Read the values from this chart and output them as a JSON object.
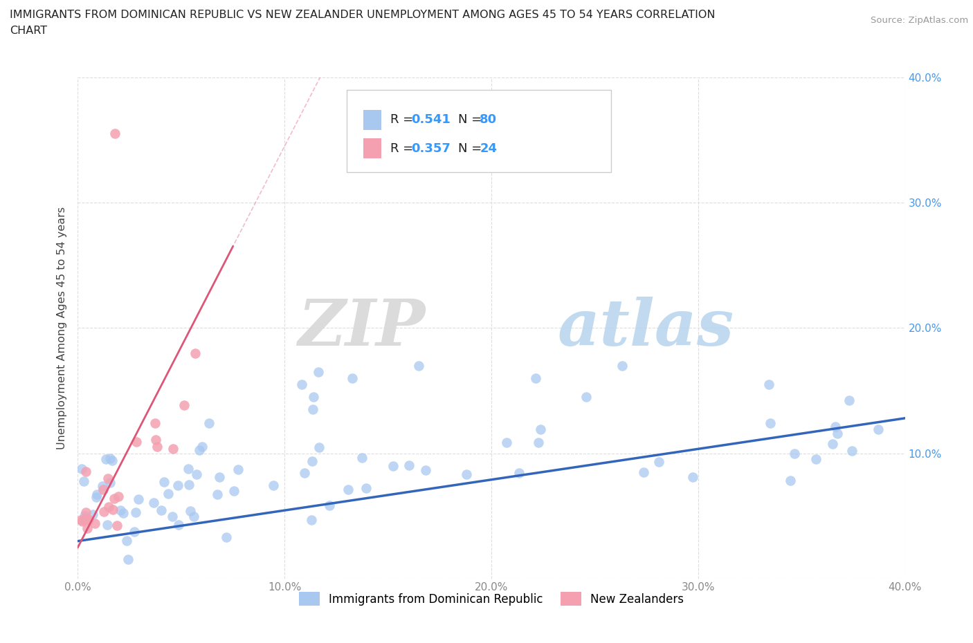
{
  "title_line1": "IMMIGRANTS FROM DOMINICAN REPUBLIC VS NEW ZEALANDER UNEMPLOYMENT AMONG AGES 45 TO 54 YEARS CORRELATION",
  "title_line2": "CHART",
  "source_text": "Source: ZipAtlas.com",
  "ylabel": "Unemployment Among Ages 45 to 54 years",
  "xlim": [
    0.0,
    0.4
  ],
  "ylim": [
    0.0,
    0.4
  ],
  "xticks": [
    0.0,
    0.1,
    0.2,
    0.3,
    0.4
  ],
  "yticks": [
    0.0,
    0.1,
    0.2,
    0.3,
    0.4
  ],
  "xticklabels": [
    "0.0%",
    "10.0%",
    "20.0%",
    "30.0%",
    "40.0%"
  ],
  "yticklabels_right": [
    "",
    "10.0%",
    "20.0%",
    "30.0%",
    "40.0%"
  ],
  "blue_R": "0.541",
  "blue_N": "80",
  "pink_R": "0.357",
  "pink_N": "24",
  "blue_color": "#a8c8f0",
  "pink_color": "#f4a0b0",
  "blue_line_color": "#3366bb",
  "pink_line_color": "#dd5577",
  "watermark_zip": "ZIP",
  "watermark_atlas": "atlas",
  "legend_label_blue": "Immigrants from Dominican Republic",
  "legend_label_pink": "New Zealanders",
  "background_color": "#ffffff",
  "grid_color": "#dddddd",
  "tick_color": "#888888",
  "right_tick_color": "#4499ee"
}
